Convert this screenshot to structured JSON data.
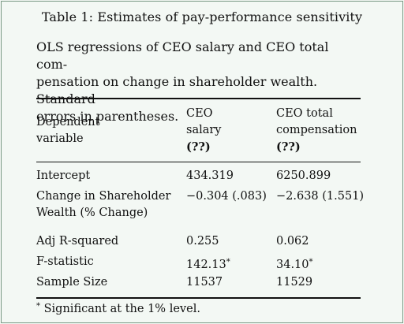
{
  "table": {
    "caption": "Table 1: Estimates of pay-performance sensitivity",
    "description": "OLS regressions of CEO salary and CEO total com-pensation on change in shareholder wealth. Standard errors in parentheses.",
    "description_lines": [
      "OLS regressions of CEO salary and CEO total com-",
      "pensation on change in shareholder wealth. Standard",
      "errors in parentheses."
    ],
    "header": {
      "col1_lines": [
        "Dependent",
        "variable"
      ],
      "col2_lines": [
        "CEO",
        "salary",
        "(??)"
      ],
      "col3_lines": [
        "CEO total",
        "compensation",
        "(??)"
      ]
    },
    "rows": [
      {
        "label": "Intercept",
        "salary": "434.319",
        "total": "6250.899"
      },
      {
        "label_lines": [
          "Change in Shareholder",
          "Wealth (% Change)"
        ],
        "salary": "−0.304 (.083)",
        "total": "−2.638 (1.551)"
      },
      {
        "label": "Adj R-squared",
        "salary": "0.255",
        "total": "0.062"
      },
      {
        "label": "F-statistic",
        "salary": "142.13",
        "salary_mark": "*",
        "total": "34.10",
        "total_mark": "*"
      },
      {
        "label": "Sample Size",
        "salary": "11537",
        "total": "11529"
      }
    ],
    "footnote": {
      "mark": "*",
      "text": " Significant at the 1% level."
    }
  }
}
